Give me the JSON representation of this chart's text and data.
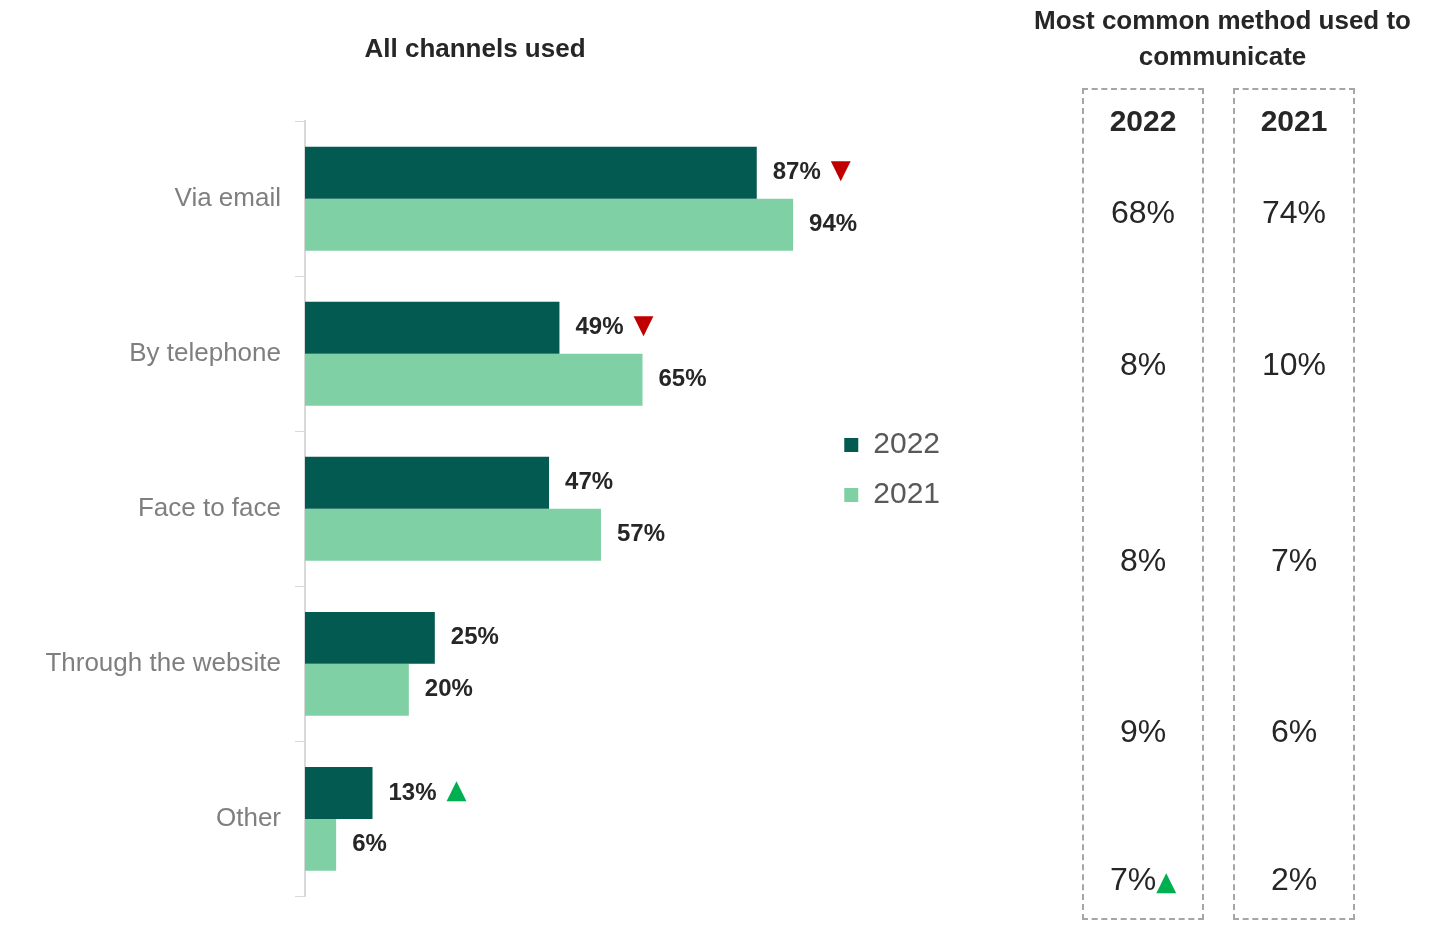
{
  "chart_data": [
    {
      "type": "bar",
      "title": "All channels used",
      "orientation": "horizontal",
      "categories": [
        "Via email",
        "By telephone",
        "Face to face",
        "Through the website",
        "Other"
      ],
      "series": [
        {
          "name": "2022",
          "color": "#035a50",
          "values": [
            87,
            49,
            47,
            25,
            13
          ],
          "value_labels": [
            "87%",
            "49%",
            "47%",
            "25%",
            "13%"
          ]
        },
        {
          "name": "2021",
          "color": "#80d0a6",
          "values": [
            94,
            65,
            57,
            20,
            6
          ],
          "value_labels": [
            "94%",
            "65%",
            "57%",
            "20%",
            "6%"
          ]
        }
      ],
      "legend": "right",
      "annotations": [
        {
          "text": "▼",
          "x": 87,
          "y": "Via email"
        },
        {
          "text": "▼",
          "x": 49,
          "y": "By telephone"
        },
        {
          "text": "▲",
          "x": 13,
          "y": "Other"
        }
      ]
    },
    {
      "type": "other",
      "title": "Most common method used to communicate",
      "categories": [
        "2022",
        "2021"
      ],
      "annotations": [
        "68%",
        "74%",
        "8%",
        "10%",
        "8%",
        "7%",
        "9%",
        "6%",
        "7%",
        {
          "text": "▲"
        },
        "2%"
      ]
    }
  ]
}
